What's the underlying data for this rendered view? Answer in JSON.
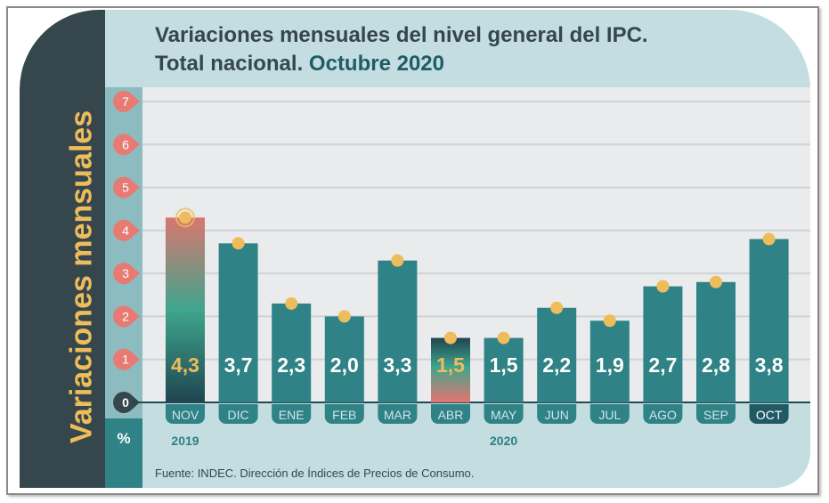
{
  "title_line1": "Variaciones mensuales del nivel general del IPC.",
  "title_line2_prefix": "Total nacional. ",
  "title_line2_highlight": "Octubre 2020",
  "side_title": "Variaciones mensuales",
  "unit": "%",
  "source": "Fuente: INDEC. Dirección de Índices de Precios de Consumo.",
  "colors": {
    "bar": "#2f8285",
    "dot": "#eebc5a",
    "tick_marker": "#e77b74",
    "dark": "#35474d"
  },
  "chart_data": {
    "type": "bar",
    "ylabel": "Variaciones mensuales",
    "unit": "%",
    "ylim": [
      0,
      7
    ],
    "yticks": [
      0,
      1,
      2,
      3,
      4,
      5,
      6,
      7
    ],
    "grid": true,
    "categories": [
      "NOV",
      "DIC",
      "ENE",
      "FEB",
      "MAR",
      "ABR",
      "MAY",
      "JUN",
      "JUL",
      "AGO",
      "SEP",
      "OCT"
    ],
    "years": [
      {
        "label": "2019",
        "under": "NOV"
      },
      {
        "label": "2020",
        "under": "MAY"
      }
    ],
    "values": [
      4.3,
      3.7,
      2.3,
      2.0,
      3.3,
      1.5,
      1.5,
      2.2,
      1.9,
      2.7,
      2.8,
      3.8
    ],
    "value_labels": [
      "4,3",
      "3,7",
      "2,3",
      "2,0",
      "3,3",
      "1,5",
      "1,5",
      "2,2",
      "1,9",
      "2,7",
      "2,8",
      "3,8"
    ],
    "highlighted": [
      "NOV",
      "ABR"
    ],
    "selected": "OCT"
  }
}
